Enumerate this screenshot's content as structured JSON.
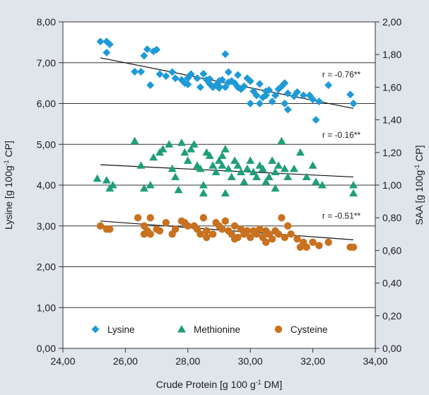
{
  "chart_data": {
    "type": "scatter",
    "title": "",
    "xlabel": {
      "pre": "Crude Protein [g 100 g",
      "sup": "-1",
      "post": " DM]"
    },
    "ylabel_left": {
      "pre": "Lysine [g 100g",
      "sup": "-1",
      "post": " CP]"
    },
    "ylabel_right": {
      "pre": "SAA [g 100g",
      "sup": "-1",
      "post": " CP]"
    },
    "xlim": [
      24,
      34
    ],
    "ylim_left": [
      0,
      8
    ],
    "ylim_right": [
      0,
      2
    ],
    "x_ticks": [
      "24,00",
      "26,00",
      "28,00",
      "30,00",
      "32,00",
      "34,00"
    ],
    "y_ticks_left": [
      "0,00",
      "1,00",
      "2,00",
      "3,00",
      "4,00",
      "5,00",
      "6,00",
      "7,00",
      "8,00"
    ],
    "y_ticks_right": [
      "0,00",
      "0,20",
      "0,40",
      "0,60",
      "0,80",
      "1,00",
      "1,20",
      "1,40",
      "1,60",
      "1,80",
      "2,00"
    ],
    "grid": "horizontal",
    "legend_position": "bottom",
    "series": [
      {
        "name": "Lysine",
        "axis": "left",
        "color": "#1e9ad6",
        "marker": "diamond",
        "points": [
          [
            25.2,
            7.52
          ],
          [
            25.4,
            7.52
          ],
          [
            25.5,
            7.45
          ],
          [
            25.4,
            7.25
          ],
          [
            26.5,
            6.78
          ],
          [
            26.3,
            6.78
          ],
          [
            26.6,
            7.17
          ],
          [
            26.7,
            7.33
          ],
          [
            26.9,
            7.28
          ],
          [
            27.0,
            7.32
          ],
          [
            26.8,
            6.45
          ],
          [
            27.1,
            6.72
          ],
          [
            27.3,
            6.67
          ],
          [
            27.5,
            6.77
          ],
          [
            27.6,
            6.62
          ],
          [
            27.8,
            6.58
          ],
          [
            27.9,
            6.5
          ],
          [
            28.0,
            6.47
          ],
          [
            28.1,
            6.72
          ],
          [
            28.3,
            6.62
          ],
          [
            28.4,
            6.4
          ],
          [
            28.5,
            6.73
          ],
          [
            28.6,
            6.58
          ],
          [
            28.7,
            6.48
          ],
          [
            28.8,
            6.4
          ],
          [
            28.9,
            6.45
          ],
          [
            29.0,
            6.38
          ],
          [
            29.1,
            6.58
          ],
          [
            29.2,
            6.4
          ],
          [
            29.2,
            7.21
          ],
          [
            29.3,
            6.77
          ],
          [
            29.4,
            6.55
          ],
          [
            29.5,
            6.5
          ],
          [
            29.6,
            6.7
          ],
          [
            29.7,
            6.35
          ],
          [
            29.8,
            6.42
          ],
          [
            29.9,
            6.62
          ],
          [
            30.0,
            6.55
          ],
          [
            30.1,
            6.3
          ],
          [
            30.2,
            6.2
          ],
          [
            30.3,
            6.48
          ],
          [
            30.4,
            6.15
          ],
          [
            30.5,
            6.2
          ],
          [
            30.6,
            6.33
          ],
          [
            30.7,
            6.05
          ],
          [
            30.8,
            6.2
          ],
          [
            30.9,
            6.35
          ],
          [
            31.0,
            6.42
          ],
          [
            31.1,
            6.5
          ],
          [
            31.2,
            6.25
          ],
          [
            31.4,
            6.18
          ],
          [
            31.5,
            6.28
          ],
          [
            31.7,
            6.2
          ],
          [
            31.9,
            6.2
          ],
          [
            32.0,
            6.1
          ],
          [
            32.2,
            6.05
          ],
          [
            30.0,
            6.0
          ],
          [
            30.3,
            6.0
          ],
          [
            31.1,
            6.0
          ],
          [
            31.2,
            5.85
          ],
          [
            32.1,
            5.6
          ],
          [
            32.5,
            6.45
          ],
          [
            33.2,
            6.22
          ],
          [
            33.3,
            6.0
          ],
          [
            28.7,
            6.6
          ],
          [
            29.0,
            6.42
          ],
          [
            29.3,
            6.52
          ],
          [
            29.6,
            6.4
          ],
          [
            30.5,
            6.3
          ],
          [
            28.0,
            6.62
          ],
          [
            29.0,
            6.55
          ]
        ]
      },
      {
        "name": "Methionine",
        "axis": "right",
        "color": "#1f9e7a",
        "marker": "triangle",
        "points": [
          [
            25.1,
            1.04
          ],
          [
            25.4,
            1.03
          ],
          [
            25.5,
            0.98
          ],
          [
            25.6,
            1.0
          ],
          [
            26.3,
            1.27
          ],
          [
            26.5,
            1.12
          ],
          [
            26.6,
            0.98
          ],
          [
            26.8,
            1.0
          ],
          [
            26.9,
            1.17
          ],
          [
            27.1,
            1.2
          ],
          [
            27.2,
            1.22
          ],
          [
            27.4,
            1.25
          ],
          [
            27.5,
            1.1
          ],
          [
            27.6,
            1.05
          ],
          [
            27.7,
            0.97
          ],
          [
            27.8,
            1.26
          ],
          [
            27.9,
            1.2
          ],
          [
            28.0,
            1.15
          ],
          [
            28.1,
            1.22
          ],
          [
            28.2,
            1.25
          ],
          [
            28.3,
            1.12
          ],
          [
            28.4,
            1.1
          ],
          [
            28.5,
            0.95
          ],
          [
            28.6,
            1.2
          ],
          [
            28.7,
            1.18
          ],
          [
            28.8,
            1.12
          ],
          [
            28.9,
            1.08
          ],
          [
            29.0,
            1.15
          ],
          [
            29.1,
            1.18
          ],
          [
            29.2,
            1.22
          ],
          [
            29.3,
            1.1
          ],
          [
            29.4,
            1.05
          ],
          [
            29.5,
            1.15
          ],
          [
            29.6,
            1.12
          ],
          [
            29.7,
            1.08
          ],
          [
            29.8,
            1.02
          ],
          [
            29.9,
            1.1
          ],
          [
            30.0,
            1.15
          ],
          [
            30.1,
            1.08
          ],
          [
            30.2,
            1.05
          ],
          [
            30.3,
            1.12
          ],
          [
            30.4,
            1.1
          ],
          [
            30.5,
            1.02
          ],
          [
            30.6,
            1.05
          ],
          [
            30.7,
            1.15
          ],
          [
            30.8,
            1.08
          ],
          [
            30.9,
            1.12
          ],
          [
            31.0,
            1.27
          ],
          [
            31.1,
            1.1
          ],
          [
            31.2,
            1.05
          ],
          [
            31.4,
            1.1
          ],
          [
            31.6,
            1.2
          ],
          [
            31.8,
            1.05
          ],
          [
            32.0,
            1.12
          ],
          [
            32.1,
            1.02
          ],
          [
            32.3,
            1.0
          ],
          [
            33.3,
            0.95
          ],
          [
            33.3,
            1.0
          ],
          [
            29.2,
            0.95
          ],
          [
            30.8,
            0.98
          ],
          [
            28.5,
            1.0
          ],
          [
            29.1,
            1.12
          ]
        ]
      },
      {
        "name": "Cysteine",
        "axis": "right",
        "color": "#c8711f",
        "marker": "circle",
        "points": [
          [
            25.2,
            0.75
          ],
          [
            25.4,
            0.73
          ],
          [
            25.5,
            0.73
          ],
          [
            26.4,
            0.8
          ],
          [
            26.6,
            0.75
          ],
          [
            26.6,
            0.7
          ],
          [
            26.8,
            0.8
          ],
          [
            26.8,
            0.7
          ],
          [
            27.0,
            0.73
          ],
          [
            27.1,
            0.72
          ],
          [
            27.3,
            0.77
          ],
          [
            27.5,
            0.7
          ],
          [
            27.8,
            0.78
          ],
          [
            27.9,
            0.77
          ],
          [
            28.0,
            0.75
          ],
          [
            28.2,
            0.75
          ],
          [
            28.3,
            0.73
          ],
          [
            28.4,
            0.7
          ],
          [
            28.5,
            0.8
          ],
          [
            28.6,
            0.72
          ],
          [
            28.8,
            0.7
          ],
          [
            28.9,
            0.77
          ],
          [
            29.0,
            0.75
          ],
          [
            29.1,
            0.73
          ],
          [
            29.2,
            0.78
          ],
          [
            29.3,
            0.72
          ],
          [
            29.4,
            0.7
          ],
          [
            29.5,
            0.75
          ],
          [
            29.6,
            0.68
          ],
          [
            29.7,
            0.73
          ],
          [
            29.8,
            0.7
          ],
          [
            29.9,
            0.72
          ],
          [
            30.0,
            0.68
          ],
          [
            30.1,
            0.72
          ],
          [
            30.2,
            0.7
          ],
          [
            30.3,
            0.73
          ],
          [
            30.4,
            0.68
          ],
          [
            30.5,
            0.72
          ],
          [
            30.6,
            0.7
          ],
          [
            30.7,
            0.67
          ],
          [
            30.8,
            0.72
          ],
          [
            30.9,
            0.7
          ],
          [
            31.0,
            0.8
          ],
          [
            31.1,
            0.68
          ],
          [
            31.2,
            0.75
          ],
          [
            31.3,
            0.7
          ],
          [
            31.5,
            0.67
          ],
          [
            31.7,
            0.65
          ],
          [
            31.8,
            0.62
          ],
          [
            32.0,
            0.65
          ],
          [
            32.2,
            0.63
          ],
          [
            32.5,
            0.65
          ],
          [
            33.2,
            0.62
          ],
          [
            33.3,
            0.62
          ],
          [
            31.6,
            0.62
          ],
          [
            30.5,
            0.65
          ],
          [
            29.5,
            0.67
          ],
          [
            28.6,
            0.68
          ],
          [
            27.6,
            0.73
          ],
          [
            26.7,
            0.72
          ]
        ]
      }
    ],
    "trendlines": [
      {
        "series": "Lysine",
        "axis": "left",
        "x": [
          25.2,
          33.3
        ],
        "y": [
          7.12,
          5.88
        ],
        "label": "r = -0.76**",
        "label_x": 32.3,
        "label_y": 1.66
      },
      {
        "series": "Methionine",
        "axis": "right",
        "x": [
          25.2,
          33.3
        ],
        "y": [
          1.125,
          1.05
        ],
        "label": "r = -0.16**",
        "label_x": 32.3,
        "label_y": 1.29
      },
      {
        "series": "Cysteine",
        "axis": "right",
        "x": [
          25.2,
          33.3
        ],
        "y": [
          0.78,
          0.665
        ],
        "label": "r = -0.51**",
        "label_x": 32.3,
        "label_y": 0.795
      }
    ]
  }
}
